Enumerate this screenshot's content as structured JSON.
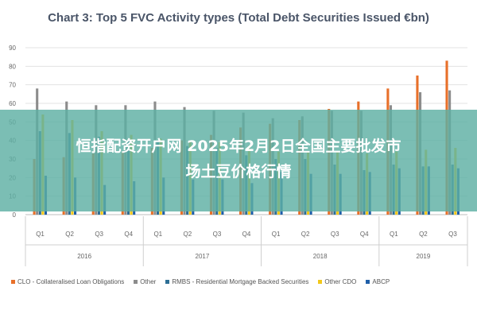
{
  "chart_data": {
    "type": "bar",
    "title": "Chart 3: Top 5 FVC Activity types (Total Debt Securities Issued €bn)",
    "ylim": [
      0,
      90
    ],
    "yticks": [
      0,
      10,
      20,
      30,
      40,
      50,
      60,
      70,
      80,
      90
    ],
    "grid": true,
    "legend_position": "bottom",
    "categories": [
      "Q1",
      "Q2",
      "Q3",
      "Q4",
      "Q1",
      "Q2",
      "Q3",
      "Q4",
      "Q1",
      "Q2",
      "Q3",
      "Q4",
      "Q1",
      "Q2",
      "Q3"
    ],
    "years": [
      {
        "label": "2016",
        "start": 0,
        "end": 3
      },
      {
        "label": "2017",
        "start": 4,
        "end": 7
      },
      {
        "label": "2018",
        "start": 8,
        "end": 11
      },
      {
        "label": "2019",
        "start": 12,
        "end": 14
      }
    ],
    "series": [
      {
        "name": "CLO - Collateralised Loan Obligations",
        "color": "#e8702a",
        "values": [
          30,
          31,
          33,
          34,
          36,
          40,
          43,
          47,
          49,
          51,
          57,
          61,
          68,
          75,
          83
        ]
      },
      {
        "name": "Other",
        "color": "#8c8c8c",
        "values": [
          68,
          61,
          59,
          59,
          61,
          58,
          56,
          55,
          52,
          53,
          56,
          56,
          59,
          66,
          67
        ]
      },
      {
        "name": "RMBS - Residential Mortgage Backed Securities",
        "color": "#2e6f95",
        "values": [
          45,
          44,
          42,
          40,
          40,
          37,
          36,
          32,
          30,
          30,
          27,
          24,
          27,
          26,
          27
        ]
      },
      {
        "name": "Other CDO",
        "color": "#f2c81a",
        "values": [
          54,
          51,
          45,
          43,
          41,
          40,
          39,
          37,
          34,
          34,
          34,
          33,
          34,
          35,
          36
        ]
      },
      {
        "name": "ABCP",
        "color": "#1f5fa8",
        "values": [
          21,
          20,
          16,
          18,
          20,
          19,
          19,
          17,
          23,
          22,
          22,
          23,
          25,
          26,
          25
        ]
      }
    ]
  },
  "banner": {
    "line1": "恒指配资开户网 2025年2月2日全国主要批发市",
    "line2": "场土豆价格行情"
  }
}
